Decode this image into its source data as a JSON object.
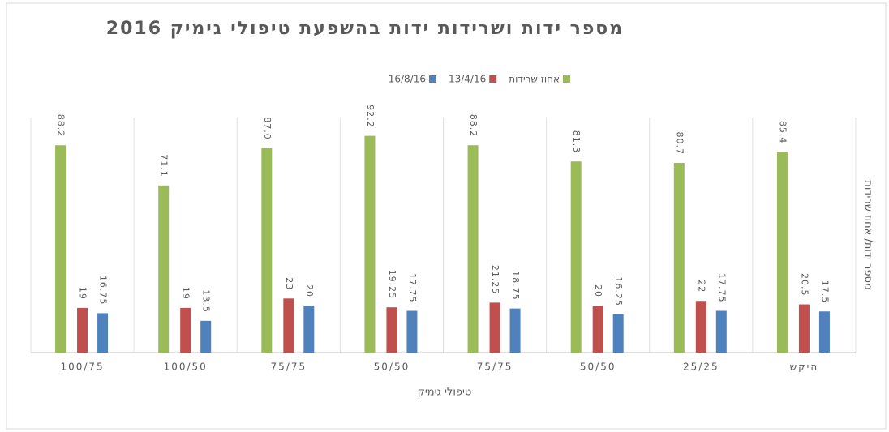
{
  "chart_data": {
    "type": "bar",
    "title": "מספר ידות ושרידות ידות בהשפעת טיפולי גימיק 2016",
    "x_label": "טיפולי גימיק",
    "y_label": "מספר ידות/ אחוז שרידות",
    "categories": [
      "100/75",
      "100/50",
      "75/75",
      "50/50",
      "75/75",
      "50/50",
      "25/25",
      "היקש"
    ],
    "series": [
      {
        "name": "אחוז שרידות",
        "color": "#9bbb59",
        "values": [
          88.2,
          71.1,
          87,
          92.2,
          88.2,
          81.3,
          80.7,
          85.4
        ],
        "value_labels": [
          "88.2",
          "71.1",
          "87.0",
          "92.2",
          "88.2",
          "81.3",
          "80.7",
          "85.4"
        ]
      },
      {
        "name": "13/4/16",
        "color": "#c0504d",
        "values": [
          19,
          19,
          23,
          19.25,
          21.25,
          20,
          22,
          20.5
        ]
      },
      {
        "name": "16/8/16",
        "color": "#4f81bd",
        "values": [
          16.75,
          13.5,
          20,
          17.75,
          18.75,
          16.25,
          17.75,
          17.5
        ]
      }
    ],
    "ylim": [
      0,
      100
    ],
    "legend": "top"
  }
}
